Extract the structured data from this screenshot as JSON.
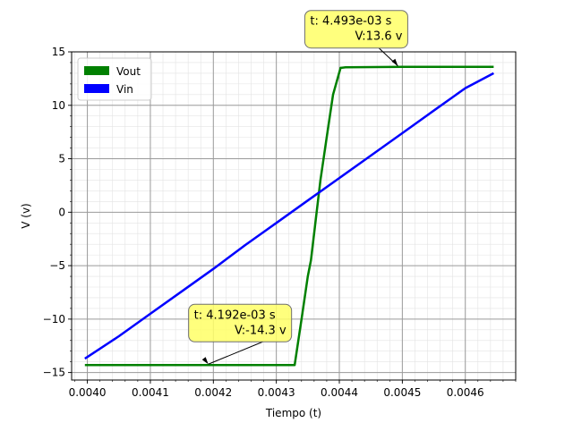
{
  "chart_data": {
    "type": "line",
    "title": "",
    "xlabel": "Tiempo (t)",
    "ylabel": "V (v)",
    "xlim": [
      0.003975,
      0.00468
    ],
    "ylim": [
      -15.7,
      15.0
    ],
    "xticks": [
      0.004,
      0.0041,
      0.0042,
      0.0043,
      0.0044,
      0.0045,
      0.0046
    ],
    "xtick_labels": [
      "0.0040",
      "0.0041",
      "0.0042",
      "0.0043",
      "0.0044",
      "0.0045",
      "0.0046"
    ],
    "yticks": [
      -15,
      -10,
      -5,
      0,
      5,
      10,
      15
    ],
    "ytick_labels": [
      "−15",
      "−10",
      "−5",
      "0",
      "5",
      "10",
      "15"
    ],
    "grid": true,
    "legend_position": "upper-left",
    "series": [
      {
        "name": "Vout",
        "color": "#008000",
        "x": [
          0.003996,
          0.00425,
          0.004329,
          0.00434,
          0.00435,
          0.004355,
          0.00437,
          0.00438,
          0.00439,
          0.004402,
          0.00441,
          0.0045,
          0.004645
        ],
        "y": [
          -14.3,
          -14.3,
          -14.3,
          -10.0,
          -6.0,
          -4.5,
          3.0,
          7.0,
          11.0,
          13.5,
          13.55,
          13.6,
          13.6
        ]
      },
      {
        "name": "Vin",
        "color": "#0000ff",
        "x": [
          0.003996,
          0.00405,
          0.0041,
          0.00415,
          0.0042,
          0.00425,
          0.0043,
          0.00435,
          0.0044,
          0.00445,
          0.0045,
          0.00455,
          0.0046,
          0.004645
        ],
        "y": [
          -13.7,
          -11.6,
          -9.5,
          -7.4,
          -5.3,
          -3.1,
          -1.0,
          1.1,
          3.2,
          5.3,
          7.4,
          9.5,
          11.6,
          13.0
        ]
      }
    ],
    "annotations": [
      {
        "line1": "t: 4.493e-03 s",
        "line2": "V:13.6 v",
        "x": 0.004493,
        "y": 13.6
      },
      {
        "line1": "t: 4.192e-03 s",
        "line2": "V:-14.3 v",
        "x": 0.004192,
        "y": -14.3
      }
    ]
  }
}
